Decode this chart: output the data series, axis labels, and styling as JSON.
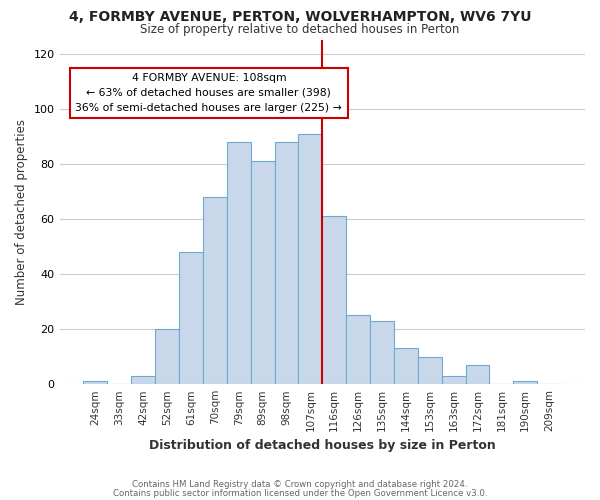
{
  "title": "4, FORMBY AVENUE, PERTON, WOLVERHAMPTON, WV6 7YU",
  "subtitle": "Size of property relative to detached houses in Perton",
  "xlabel": "Distribution of detached houses by size in Perton",
  "ylabel": "Number of detached properties",
  "bar_labels": [
    "24sqm",
    "33sqm",
    "42sqm",
    "52sqm",
    "61sqm",
    "70sqm",
    "79sqm",
    "89sqm",
    "98sqm",
    "107sqm",
    "116sqm",
    "126sqm",
    "135sqm",
    "144sqm",
    "153sqm",
    "163sqm",
    "172sqm",
    "181sqm",
    "190sqm",
    "209sqm"
  ],
  "bar_values": [
    1,
    0,
    3,
    20,
    48,
    68,
    88,
    81,
    88,
    91,
    61,
    25,
    23,
    13,
    10,
    3,
    7,
    0,
    1,
    0
  ],
  "bar_color": "#c8d8ea",
  "bar_edgecolor": "#6fa8d0",
  "vline_x_index": 9.5,
  "vline_color": "#cc0000",
  "annotation_title": "4 FORMBY AVENUE: 108sqm",
  "annotation_line1": "← 63% of detached houses are smaller (398)",
  "annotation_line2": "36% of semi-detached houses are larger (225) →",
  "annotation_box_facecolor": "#ffffff",
  "annotation_box_edgecolor": "#cc0000",
  "ylim": [
    0,
    125
  ],
  "yticks": [
    0,
    20,
    40,
    60,
    80,
    100,
    120
  ],
  "footer1": "Contains HM Land Registry data © Crown copyright and database right 2024.",
  "footer2": "Contains public sector information licensed under the Open Government Licence v3.0.",
  "background_color": "#ffffff",
  "grid_color": "#cccccc"
}
